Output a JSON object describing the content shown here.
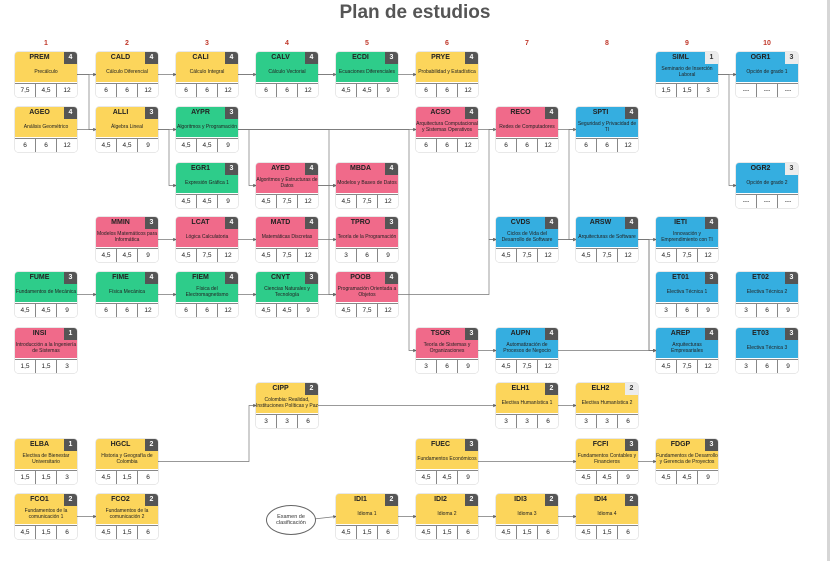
{
  "title": "Plan de estudios",
  "semesters": [
    "1",
    "2",
    "3",
    "4",
    "5",
    "6",
    "7",
    "8",
    "9",
    "10"
  ],
  "exam_label": "Examen de clasificación",
  "colors": {
    "yellow": "#fcd55b",
    "green": "#2ecc8a",
    "pink": "#f06a8a",
    "blue": "#35aee0",
    "credit_dark": "#555555",
    "credit_light": "#ececec",
    "semester_number": "#c0392b"
  },
  "courses": [
    {
      "code": "PREM",
      "credits": "4",
      "name": "Precálculo",
      "h": [
        "7,5",
        "4,5",
        "12"
      ],
      "color": "yellow"
    },
    {
      "code": "CALD",
      "credits": "4",
      "name": "Cálculo Diferencial",
      "h": [
        "6",
        "6",
        "12"
      ],
      "color": "yellow"
    },
    {
      "code": "CALI",
      "credits": "4",
      "name": "Cálculo Integral",
      "h": [
        "6",
        "6",
        "12"
      ],
      "color": "yellow"
    },
    {
      "code": "CALV",
      "credits": "4",
      "name": "Cálculo Vectorial",
      "h": [
        "6",
        "6",
        "12"
      ],
      "color": "green"
    },
    {
      "code": "ECDI",
      "credits": "3",
      "name": "Ecuaciones Diferenciales",
      "h": [
        "4,5",
        "4,5",
        "9"
      ],
      "color": "green"
    },
    {
      "code": "PRYE",
      "credits": "4",
      "name": "Probabilidad y Estadística",
      "h": [
        "6",
        "6",
        "12"
      ],
      "color": "yellow"
    },
    {
      "code": "SIML",
      "credits": "1",
      "name": "Seminario de Inserción Laboral",
      "h": [
        "1,5",
        "1,5",
        "3"
      ],
      "color": "blue"
    },
    {
      "code": "OGR1",
      "credits": "3",
      "name": "Opción de grado 1",
      "h": [
        "---",
        "---",
        "---"
      ],
      "color": "blue"
    },
    {
      "code": "AGEO",
      "credits": "4",
      "name": "Análisis Geométrico",
      "h": [
        "6",
        "6",
        "12"
      ],
      "color": "yellow"
    },
    {
      "code": "ALLI",
      "credits": "3",
      "name": "Álgebra Lineal",
      "h": [
        "4,5",
        "4,5",
        "9"
      ],
      "color": "yellow"
    },
    {
      "code": "AYPR",
      "credits": "3",
      "name": "Algoritmos y Programación",
      "h": [
        "4,5",
        "4,5",
        "9"
      ],
      "color": "green"
    },
    {
      "code": "ACSO",
      "credits": "4",
      "name": "Arquitectura Computacional y Sistemas Operativos",
      "h": [
        "6",
        "6",
        "12"
      ],
      "color": "pink"
    },
    {
      "code": "RECO",
      "credits": "4",
      "name": "Redes de Computadores",
      "h": [
        "6",
        "6",
        "12"
      ],
      "color": "pink"
    },
    {
      "code": "SPTI",
      "credits": "4",
      "name": "Seguridad y Privacidad de TI",
      "h": [
        "6",
        "6",
        "12"
      ],
      "color": "blue"
    },
    {
      "code": "EGR1",
      "credits": "3",
      "name": "Expresión Gráfica 1",
      "h": [
        "4,5",
        "4,5",
        "9"
      ],
      "color": "green"
    },
    {
      "code": "AYED",
      "credits": "4",
      "name": "Algoritmos y Estructuras de Datos",
      "h": [
        "4,5",
        "7,5",
        "12"
      ],
      "color": "pink"
    },
    {
      "code": "MBDA",
      "credits": "4",
      "name": "Modelos y Bases de Datos",
      "h": [
        "4,5",
        "7,5",
        "12"
      ],
      "color": "pink"
    },
    {
      "code": "OGR2",
      "credits": "3",
      "name": "Opción de grado 2",
      "h": [
        "---",
        "---",
        "---"
      ],
      "color": "blue"
    },
    {
      "code": "MMIN",
      "credits": "3",
      "name": "Modelos Matemáticos para Informática",
      "h": [
        "4,5",
        "4,5",
        "9"
      ],
      "color": "pink"
    },
    {
      "code": "LCAT",
      "credits": "4",
      "name": "Lógica Calculatoria",
      "h": [
        "4,5",
        "7,5",
        "12"
      ],
      "color": "pink"
    },
    {
      "code": "MATD",
      "credits": "4",
      "name": "Matemáticas Discretas",
      "h": [
        "4,5",
        "7,5",
        "12"
      ],
      "color": "pink"
    },
    {
      "code": "TPRO",
      "credits": "3",
      "name": "Teoría de la Programación",
      "h": [
        "3",
        "6",
        "9"
      ],
      "color": "pink"
    },
    {
      "code": "CVDS",
      "credits": "4",
      "name": "Ciclos de Vida del Desarrollo de Software",
      "h": [
        "4,5",
        "7,5",
        "12"
      ],
      "color": "blue"
    },
    {
      "code": "ARSW",
      "credits": "4",
      "name": "Arquitecturas de Software",
      "h": [
        "4,5",
        "7,5",
        "12"
      ],
      "color": "blue"
    },
    {
      "code": "IETI",
      "credits": "4",
      "name": "Innovación y Emprendimiento con TI",
      "h": [
        "4,5",
        "7,5",
        "12"
      ],
      "color": "blue"
    },
    {
      "code": "FUME",
      "credits": "3",
      "name": "Fundamentos de Mecánica",
      "h": [
        "4,5",
        "4,5",
        "9"
      ],
      "color": "green"
    },
    {
      "code": "FIME",
      "credits": "4",
      "name": "Física Mecánica",
      "h": [
        "6",
        "6",
        "12"
      ],
      "color": "green"
    },
    {
      "code": "FIEM",
      "credits": "4",
      "name": "Física del Electromagnetismo",
      "h": [
        "6",
        "6",
        "12"
      ],
      "color": "green"
    },
    {
      "code": "CNYT",
      "credits": "3",
      "name": "Ciencias Naturales y Tecnología",
      "h": [
        "4,5",
        "4,5",
        "9"
      ],
      "color": "green"
    },
    {
      "code": "POOB",
      "credits": "4",
      "name": "Programación Orientada a Objetos",
      "h": [
        "4,5",
        "7,5",
        "12"
      ],
      "color": "pink"
    },
    {
      "code": "ET01",
      "credits": "3",
      "name": "Electiva Técnica 1",
      "h": [
        "3",
        "6",
        "9"
      ],
      "color": "blue"
    },
    {
      "code": "ET02",
      "credits": "3",
      "name": "Electiva Técnica 2",
      "h": [
        "3",
        "6",
        "9"
      ],
      "color": "blue"
    },
    {
      "code": "INSI",
      "credits": "1",
      "name": "Introducción a la Ingeniería de Sistemas",
      "h": [
        "1,5",
        "1,5",
        "3"
      ],
      "color": "pink"
    },
    {
      "code": "TSOR",
      "credits": "3",
      "name": "Teoría de Sistemas y Organizaciones",
      "h": [
        "3",
        "6",
        "9"
      ],
      "color": "pink"
    },
    {
      "code": "AUPN",
      "credits": "4",
      "name": "Automatización de Procesos de Negocio",
      "h": [
        "4,5",
        "7,5",
        "12"
      ],
      "color": "blue"
    },
    {
      "code": "AREP",
      "credits": "4",
      "name": "Arquitecturas Empresariales",
      "h": [
        "4,5",
        "7,5",
        "12"
      ],
      "color": "blue"
    },
    {
      "code": "ET03",
      "credits": "3",
      "name": "Electiva Técnica 3",
      "h": [
        "3",
        "6",
        "9"
      ],
      "color": "blue"
    },
    {
      "code": "CIPP",
      "credits": "2",
      "name": "Colombia: Realidad, Instituciones Políticas y Paz",
      "h": [
        "3",
        "3",
        "6"
      ],
      "color": "yellow"
    },
    {
      "code": "ELH1",
      "credits": "2",
      "name": "Electiva Humanística 1",
      "h": [
        "3",
        "3",
        "6"
      ],
      "color": "yellow"
    },
    {
      "code": "ELH2",
      "credits": "2",
      "name": "Electiva Humanística 2",
      "h": [
        "3",
        "3",
        "6"
      ],
      "color": "yellow"
    },
    {
      "code": "ELBA",
      "credits": "1",
      "name": "Electiva de Bienestar Universitario",
      "h": [
        "1,5",
        "1,5",
        "3"
      ],
      "color": "yellow"
    },
    {
      "code": "HGCL",
      "credits": "2",
      "name": "Historia y Geografía de Colombia",
      "h": [
        "4,5",
        "1,5",
        "6"
      ],
      "color": "yellow"
    },
    {
      "code": "FUEC",
      "credits": "3",
      "name": "Fundamentos Económicos",
      "h": [
        "4,5",
        "4,5",
        "9"
      ],
      "color": "yellow"
    },
    {
      "code": "FCFI",
      "credits": "3",
      "name": "Fundamentos Contables y Financieros",
      "h": [
        "4,5",
        "4,5",
        "9"
      ],
      "color": "yellow"
    },
    {
      "code": "FDGP",
      "credits": "3",
      "name": "Fundamentos de Desarrollo y Gerencia de Proyectos",
      "h": [
        "4,5",
        "4,5",
        "9"
      ],
      "color": "yellow"
    },
    {
      "code": "FCO1",
      "credits": "2",
      "name": "Fundamentos de la comunicación 1",
      "h": [
        "4,5",
        "1,5",
        "6"
      ],
      "color": "yellow"
    },
    {
      "code": "FCO2",
      "credits": "2",
      "name": "Fundamentos de la comunicación 2",
      "h": [
        "4,5",
        "1,5",
        "6"
      ],
      "color": "yellow"
    },
    {
      "code": "IDI1",
      "credits": "2",
      "name": "Idioma 1",
      "h": [
        "4,5",
        "1,5",
        "6"
      ],
      "color": "yellow"
    },
    {
      "code": "IDI2",
      "credits": "2",
      "name": "Idioma 2",
      "h": [
        "4,5",
        "1,5",
        "6"
      ],
      "color": "yellow"
    },
    {
      "code": "IDI3",
      "credits": "2",
      "name": "Idioma 3",
      "h": [
        "4,5",
        "1,5",
        "6"
      ],
      "color": "yellow"
    },
    {
      "code": "IDI4",
      "credits": "2",
      "name": "Idioma 4",
      "h": [
        "4,5",
        "1,5",
        "6"
      ],
      "color": "yellow"
    }
  ]
}
